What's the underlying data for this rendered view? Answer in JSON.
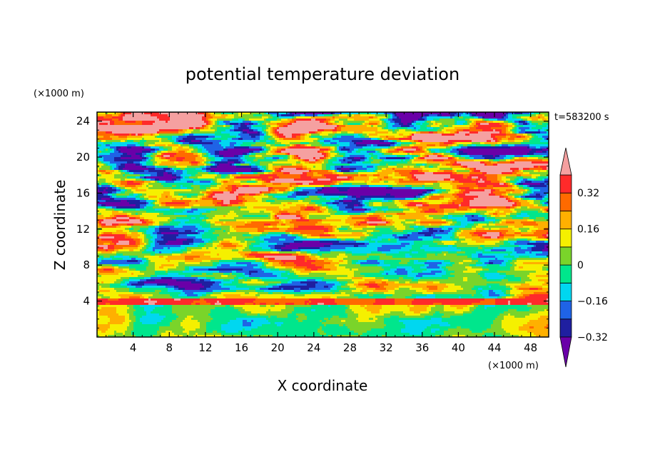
{
  "chart_data": {
    "type": "heatmap",
    "title": "potential temperature deviation",
    "xlabel": "X coordinate",
    "ylabel": "Z coordinate",
    "x_unit": "(×1000 m)",
    "y_unit": "(×1000 m)",
    "time_label": "t=583200 s",
    "xlim": [
      0,
      50
    ],
    "ylim": [
      0,
      25
    ],
    "x_ticks": [
      4,
      8,
      12,
      16,
      20,
      24,
      28,
      32,
      36,
      40,
      44,
      48
    ],
    "y_ticks": [
      4,
      8,
      12,
      16,
      20,
      24
    ],
    "colorbar": {
      "levels": [
        -0.4,
        -0.32,
        -0.24,
        -0.16,
        -0.08,
        0,
        0.08,
        0.16,
        0.24,
        0.32,
        0.4
      ],
      "tick_values": [
        -0.32,
        -0.16,
        0,
        0.16,
        0.32
      ],
      "tick_labels": [
        "−0.32",
        "−0.16",
        "0",
        "0.16",
        "0.32"
      ],
      "colors": [
        "#6a00a8",
        "#1f1fa0",
        "#1f63e6",
        "#00d7f0",
        "#00e68c",
        "#7ad42a",
        "#f5f000",
        "#ffb000",
        "#ff6a00",
        "#ff2a2a",
        "#f5a0a0"
      ],
      "extend": "both"
    },
    "grid": false
  }
}
